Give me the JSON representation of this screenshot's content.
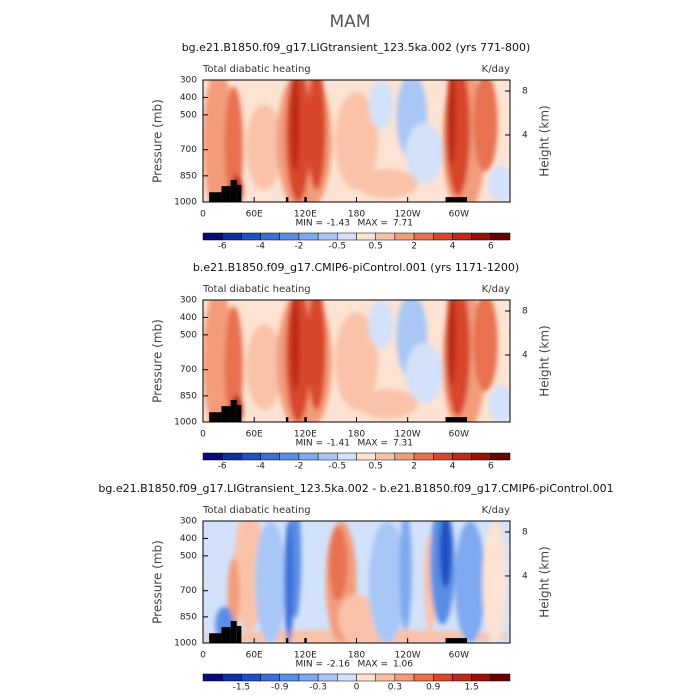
{
  "title": "MAM",
  "chart_data": [
    {
      "type": "contour",
      "title": "bg.e21.B1850.f09_g17.LIGtransient_123.5ka.002 (yrs 771-800)",
      "subtitle": "Total diabatic heating",
      "units": "K/day",
      "ylabel": "Pressure (mb)",
      "y2label": "Height (km)",
      "ylim": [
        1000,
        300
      ],
      "yticks": [
        300,
        400,
        500,
        700,
        850,
        1000
      ],
      "y2lim": [
        -2.1,
        9
      ],
      "y2ticks": [
        4,
        8
      ],
      "xlim": [
        0,
        360
      ],
      "xticks": [
        0,
        {
          "value": 60,
          "label": "60E"
        },
        {
          "value": 120,
          "label": "120E"
        },
        180,
        {
          "value": 240,
          "label": "120W"
        },
        {
          "value": 300,
          "label": "60W"
        }
      ],
      "stats": {
        "min_label": "MIN =",
        "min": -1.43,
        "max_label": "MAX =",
        "max": 7.71
      },
      "colorbar": {
        "colors": [
          "#0a0a7a",
          "#0f2f9e",
          "#1f4fc4",
          "#3a6fd8",
          "#5a8ee6",
          "#7fa9f0",
          "#a9c7f6",
          "#d3e2fa",
          "#fde3d3",
          "#f9c2a8",
          "#f39c7c",
          "#e8714f",
          "#d8472c",
          "#bd2a18",
          "#981208",
          "#6a0000"
        ],
        "ticks": [
          -6,
          -4,
          -2,
          -0.5,
          0.5,
          2,
          4,
          6
        ]
      }
    },
    {
      "type": "contour",
      "title": "b.e21.B1850.f09_g17.CMIP6-piControl.001 (yrs 1171-1200)",
      "subtitle": "Total diabatic heating",
      "units": "K/day",
      "ylabel": "Pressure (mb)",
      "y2label": "Height (km)",
      "ylim": [
        1000,
        300
      ],
      "yticks": [
        300,
        400,
        500,
        700,
        850,
        1000
      ],
      "y2lim": [
        -2.1,
        9
      ],
      "y2ticks": [
        4,
        8
      ],
      "xlim": [
        0,
        360
      ],
      "xticks": [
        0,
        {
          "value": 60,
          "label": "60E"
        },
        {
          "value": 120,
          "label": "120E"
        },
        180,
        {
          "value": 240,
          "label": "120W"
        },
        {
          "value": 300,
          "label": "60W"
        }
      ],
      "stats": {
        "min_label": "MIN =",
        "min": -1.41,
        "max_label": "MAX =",
        "max": 7.31
      },
      "colorbar": {
        "colors": [
          "#0a0a7a",
          "#0f2f9e",
          "#1f4fc4",
          "#3a6fd8",
          "#5a8ee6",
          "#7fa9f0",
          "#a9c7f6",
          "#d3e2fa",
          "#fde3d3",
          "#f9c2a8",
          "#f39c7c",
          "#e8714f",
          "#d8472c",
          "#bd2a18",
          "#981208",
          "#6a0000"
        ],
        "ticks": [
          -6,
          -4,
          -2,
          -0.5,
          0.5,
          2,
          4,
          6
        ]
      }
    },
    {
      "type": "contour",
      "title": "bg.e21.B1850.f09_g17.LIGtransient_123.5ka.002 - b.e21.B1850.f09_g17.CMIP6-piControl.001",
      "subtitle": "Total diabatic heating",
      "units": "K/day",
      "ylabel": "Pressure (mb)",
      "y2label": "Height (km)",
      "ylim": [
        1000,
        300
      ],
      "yticks": [
        300,
        400,
        500,
        700,
        850,
        1000
      ],
      "y2lim": [
        -2.1,
        9
      ],
      "y2ticks": [
        4,
        8
      ],
      "xlim": [
        0,
        360
      ],
      "xticks": [
        0,
        {
          "value": 60,
          "label": "60E"
        },
        {
          "value": 120,
          "label": "120E"
        },
        180,
        {
          "value": 240,
          "label": "120W"
        },
        {
          "value": 300,
          "label": "60W"
        }
      ],
      "stats": {
        "min_label": "MIN =",
        "min": -2.16,
        "max_label": "MAX =",
        "max": 1.06
      },
      "colorbar": {
        "colors": [
          "#0a0a7a",
          "#0f2f9e",
          "#1f4fc4",
          "#3a6fd8",
          "#5a8ee6",
          "#7fa9f0",
          "#a9c7f6",
          "#d3e2fa",
          "#fde3d3",
          "#f9c2a8",
          "#f39c7c",
          "#e8714f",
          "#d8472c",
          "#bd2a18",
          "#981208",
          "#6a0000"
        ],
        "ticks": [
          -1.5,
          -0.9,
          -0.3,
          0,
          0.3,
          0.9,
          1.5
        ]
      }
    }
  ]
}
